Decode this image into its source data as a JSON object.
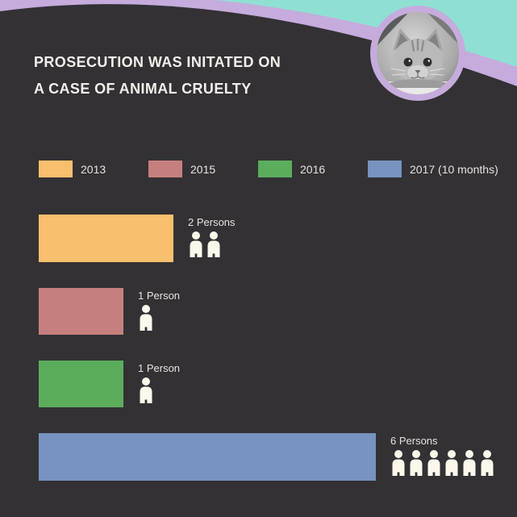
{
  "title": {
    "line1": "PROSECUTION WAS INITATED ON",
    "line2": "A CASE OF ANIMAL CRUELTY"
  },
  "legend": {
    "items": [
      {
        "label": "2013",
        "color": "#F8C06E"
      },
      {
        "label": "2015",
        "color": "#C67F7F"
      },
      {
        "label": "2016",
        "color": "#5BAD5C"
      },
      {
        "label": "2017 (10 months)",
        "color": "#7793BF"
      }
    ]
  },
  "chart_data": {
    "type": "bar",
    "orientation": "horizontal",
    "title": "PROSECUTION WAS INITATED ON A CASE OF ANIMAL CRUELTY",
    "categories": [
      "2013",
      "2015",
      "2016",
      "2017 (10 months)"
    ],
    "values": [
      2,
      1,
      1,
      6
    ],
    "unit": "persons",
    "value_labels": [
      "2 Persons",
      "1 Person",
      "1 Person",
      "6 Persons"
    ],
    "series_colors": [
      "#F8C06E",
      "#C67F7F",
      "#5BAD5C",
      "#7793BF"
    ],
    "legend_position": "top",
    "grid": false,
    "axis_labels": {
      "x": "",
      "y": ""
    },
    "pictogram": "person-icon"
  },
  "decorations": {
    "photo": "kitten-photo",
    "background": "#333134",
    "wave_teal": "#8FE0D3",
    "wave_lavender": "#C5ACDD",
    "icon_color": "#FBF9EC"
  }
}
